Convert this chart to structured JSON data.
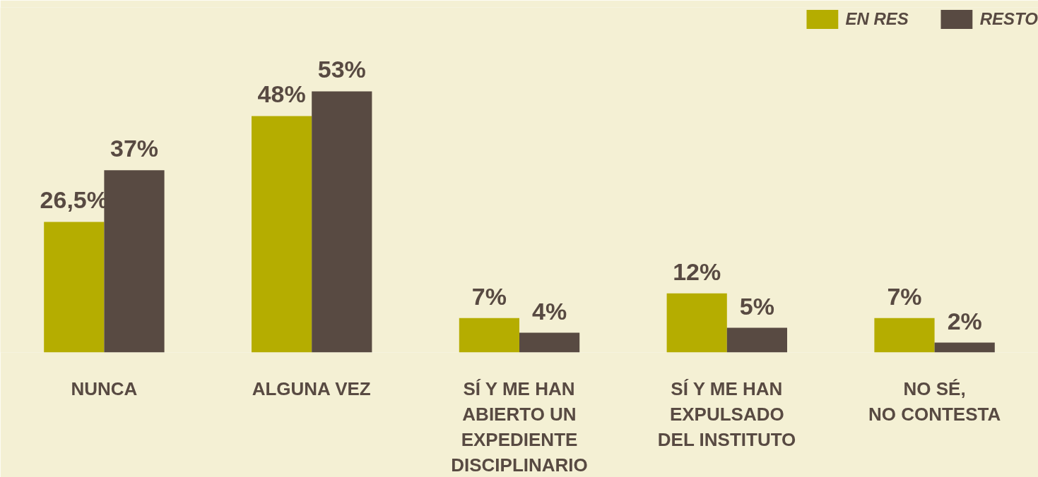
{
  "chart_data": {
    "type": "bar",
    "categories": [
      "NUNCA",
      "ALGUNA VEZ",
      "SÍ Y ME HAN\nABIERTO UN\nEXPEDIENTE\nDISCIPLINARIO",
      "SÍ Y ME HAN\nEXPULSADO\nDEL INSTITUTO",
      "NO SÉ,\nNO CONTESTA"
    ],
    "series": [
      {
        "name": "EN RES",
        "color": "#b5ad00",
        "values": [
          26.5,
          48,
          7,
          12,
          7
        ],
        "value_labels": [
          "26,5%",
          "48%",
          "7%",
          "12%",
          "7%"
        ]
      },
      {
        "name": "RESTO",
        "color": "#584a42",
        "values": [
          37,
          53,
          4,
          5,
          2
        ],
        "value_labels": [
          "37%",
          "53%",
          "4%",
          "5%",
          "2%"
        ]
      }
    ],
    "legend": "top right"
  }
}
